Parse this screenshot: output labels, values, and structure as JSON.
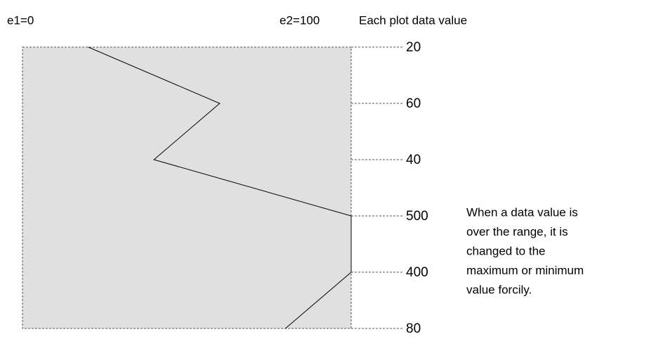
{
  "plot": {
    "range_min": {
      "value": 0,
      "label": "e1=0"
    },
    "range_max": {
      "value": 100,
      "label": "e2=100"
    },
    "values_heading": "Each plot data value",
    "values": [
      20,
      60,
      40,
      500,
      400,
      80
    ],
    "note": [
      "When a data value is",
      "over the range, it is",
      "changed to the",
      "maximum or minimum",
      "value forcily."
    ]
  }
}
